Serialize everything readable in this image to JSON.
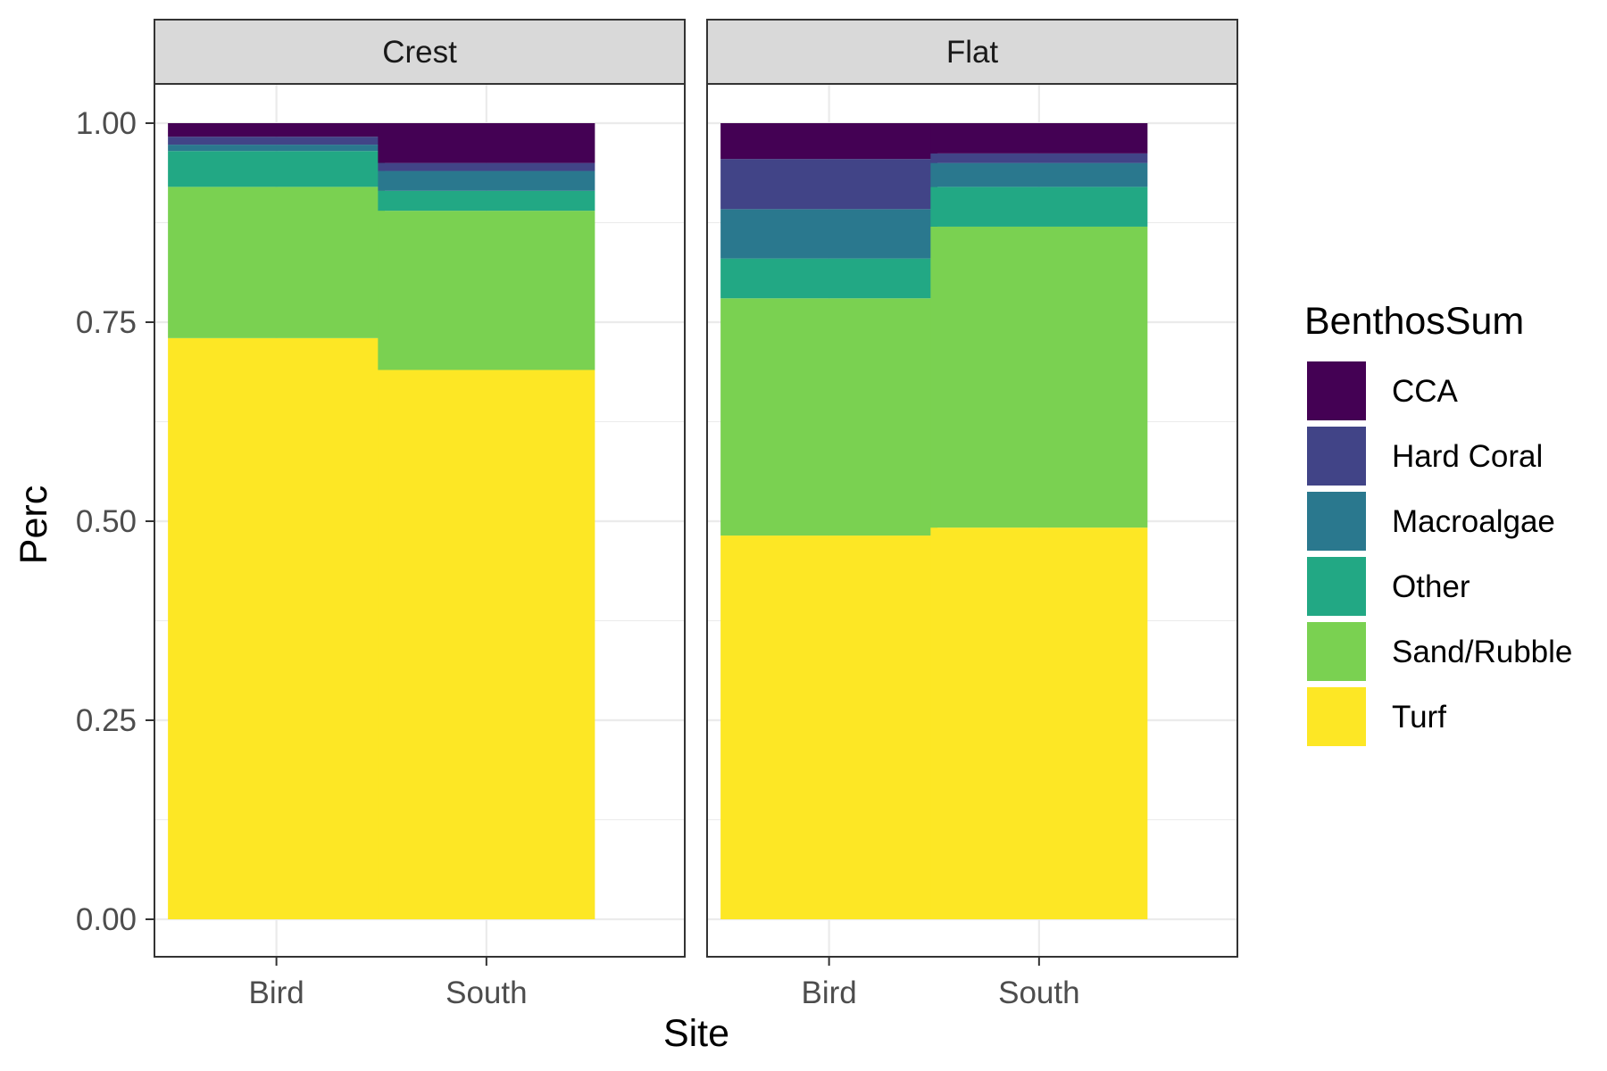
{
  "chart_data": {
    "type": "bar",
    "stacked": true,
    "ylabel": "Perc",
    "xlabel": "Site",
    "ylim": [
      0,
      1
    ],
    "yticks": [
      0,
      0.25,
      0.5,
      0.75,
      1
    ],
    "ytick_labels": [
      "0.00",
      "0.25",
      "0.50",
      "0.75",
      "1.00"
    ],
    "categories": [
      "Bird",
      "South"
    ],
    "legend": {
      "title": "BenthosSum",
      "placement": "right",
      "items": [
        {
          "label": "CCA",
          "color": "#440154"
        },
        {
          "label": "Hard Coral",
          "color": "#414487"
        },
        {
          "label": "Macroalgae",
          "color": "#2A788E"
        },
        {
          "label": "Other",
          "color": "#22A884"
        },
        {
          "label": "Sand/Rubble",
          "color": "#7AD151"
        },
        {
          "label": "Turf",
          "color": "#FDE725"
        }
      ]
    },
    "facets": [
      {
        "label": "Crest",
        "series": [
          {
            "name": "Turf",
            "values": [
              0.73,
              0.69
            ]
          },
          {
            "name": "Sand/Rubble",
            "values": [
              0.19,
              0.2
            ]
          },
          {
            "name": "Other",
            "values": [
              0.045,
              0.025
            ]
          },
          {
            "name": "Macroalgae",
            "values": [
              0.008,
              0.025
            ]
          },
          {
            "name": "Hard Coral",
            "values": [
              0.01,
              0.01
            ]
          },
          {
            "name": "CCA",
            "values": [
              0.017,
              0.05
            ]
          }
        ]
      },
      {
        "label": "Flat",
        "series": [
          {
            "name": "Turf",
            "values": [
              0.482,
              0.492
            ]
          },
          {
            "name": "Sand/Rubble",
            "values": [
              0.298,
              0.378
            ]
          },
          {
            "name": "Other",
            "values": [
              0.05,
              0.05
            ]
          },
          {
            "name": "Macroalgae",
            "values": [
              0.062,
              0.03
            ]
          },
          {
            "name": "Hard Coral",
            "values": [
              0.063,
              0.012
            ]
          },
          {
            "name": "CCA",
            "values": [
              0.045,
              0.038
            ]
          }
        ]
      }
    ]
  }
}
